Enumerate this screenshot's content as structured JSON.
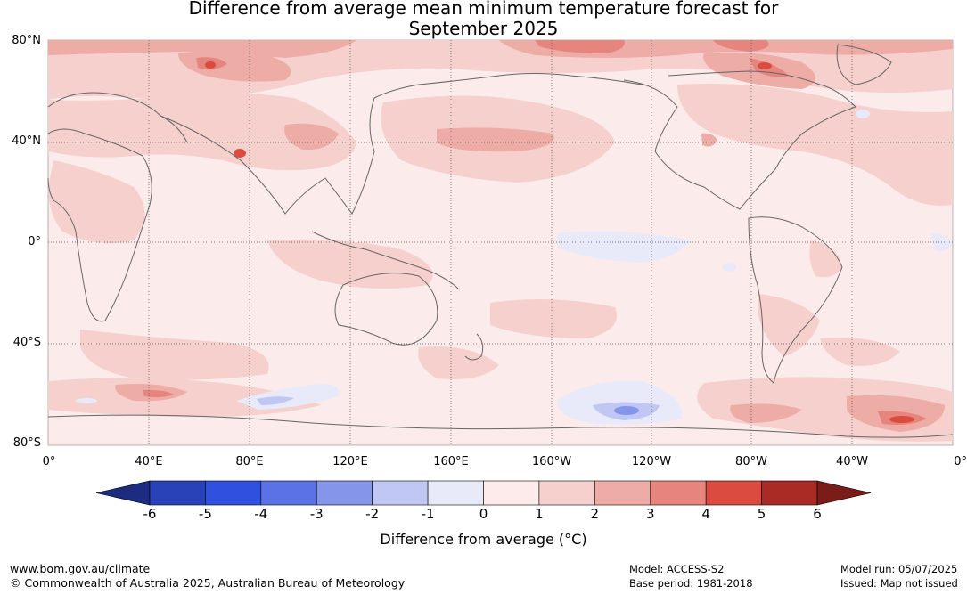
{
  "title_line1": "Difference from average mean minimum temperature forecast for",
  "title_line2": "September 2025",
  "lat_labels": [
    "80°N",
    "40°N",
    "0°",
    "40°S",
    "80°S"
  ],
  "lon_labels": [
    "0°",
    "40°E",
    "80°E",
    "120°E",
    "160°E",
    "160°W",
    "120°W",
    "80°W",
    "40°W",
    "0°"
  ],
  "colorbar": {
    "ticks": [
      "-6",
      "-5",
      "-4",
      "-3",
      "-2",
      "-1",
      "0",
      "1",
      "2",
      "3",
      "4",
      "5",
      "6"
    ],
    "colors": [
      "#1c2c80",
      "#2a42b8",
      "#3050e0",
      "#5b72e6",
      "#8595ea",
      "#c0c7f2",
      "#e8eafa",
      "#fcebea",
      "#f6d0cd",
      "#eeaca6",
      "#e6857d",
      "#db4b40",
      "#aa2a25",
      "#7a1d18"
    ],
    "label": "Difference from average (°C)"
  },
  "footer": {
    "website": "www.bom.gov.au/climate",
    "copyright": "© Commonwealth of Australia 2025, Australian Bureau of Meteorology",
    "model": "Model: ACCESS-S2",
    "base_period": "Base period: 1981-2018",
    "model_run": "Model run: 05/07/2025",
    "issued": "Issued: Map not issued"
  }
}
